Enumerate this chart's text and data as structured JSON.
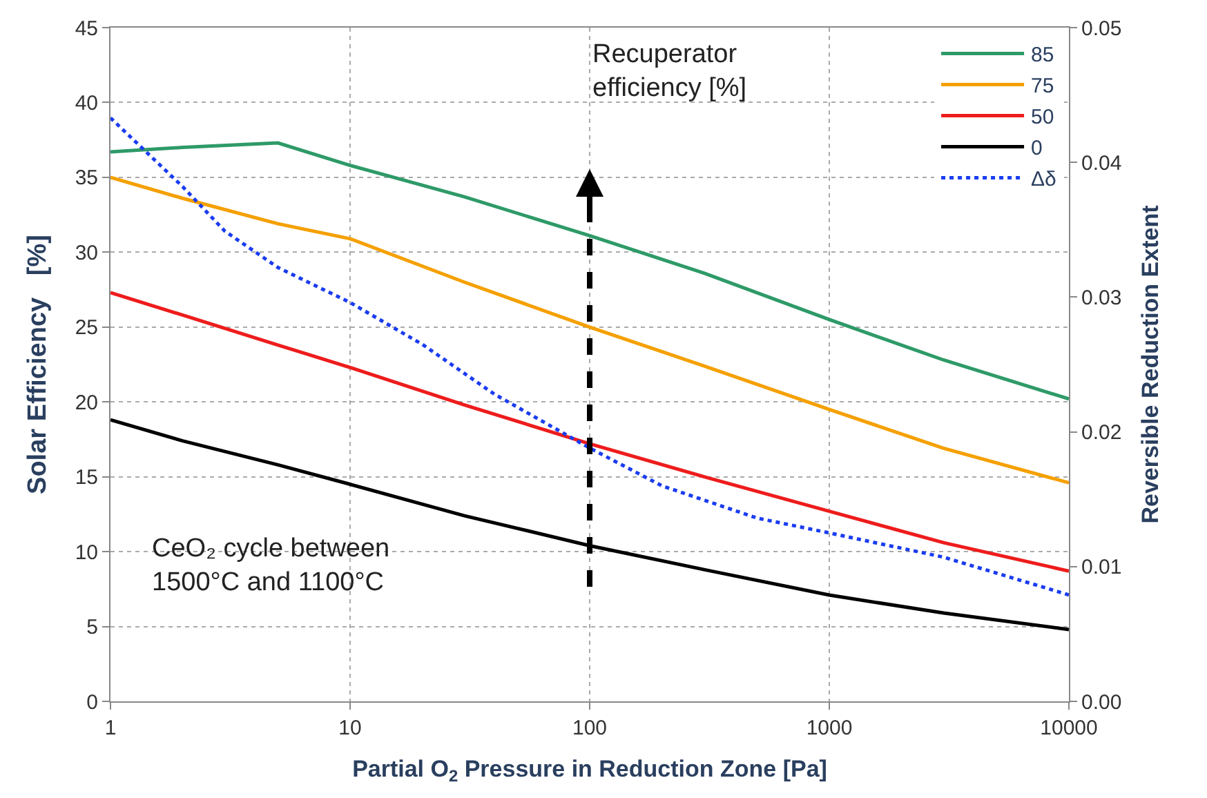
{
  "chart_data": {
    "type": "line",
    "xlabel": "Partial O$_{2}$ Pressure in Reduction Zone [Pa]",
    "ylabel": "Solar Efficiency   [%]",
    "y2label": "Reversible Reduction Extent",
    "log": "x",
    "grid": true,
    "legend": "top right",
    "marker": "none",
    "xlim": [
      1,
      10000
    ],
    "xticks": [
      1,
      10,
      100,
      1000,
      10000
    ],
    "ylim": [
      0,
      45
    ],
    "yticks": [
      0,
      5,
      10,
      15,
      20,
      25,
      30,
      35,
      40,
      45
    ],
    "y2lim": [
      0,
      0.05
    ],
    "y2ticks": [
      {
        "value": 0,
        "label": "0.00"
      },
      {
        "value": 0.01,
        "label": "0.01"
      },
      {
        "value": 0.02,
        "label": "0.02"
      },
      {
        "value": 0.03,
        "label": "0.03"
      },
      {
        "value": 0.04,
        "label": "0.04"
      },
      {
        "value": 0.05,
        "label": "0.05"
      }
    ],
    "x": [
      1,
      2,
      5,
      10,
      30,
      100,
      300,
      1000,
      3000,
      10000
    ],
    "series": [
      {
        "name": "85",
        "color": "#2e9a68",
        "values": [
          36.7,
          37.0,
          37.3,
          35.8,
          33.7,
          31.1,
          28.6,
          25.5,
          22.8,
          20.2
        ]
      },
      {
        "name": "75",
        "color": "#f5a000",
        "values": [
          35.0,
          33.6,
          31.9,
          30.9,
          28.0,
          25.0,
          22.4,
          19.5,
          16.9,
          14.6
        ]
      },
      {
        "name": "50",
        "color": "#ee1c1c",
        "values": [
          27.3,
          25.8,
          23.8,
          22.3,
          19.8,
          17.2,
          15.0,
          12.7,
          10.6,
          8.7
        ]
      },
      {
        "name": "0",
        "color": "#000000",
        "values": [
          18.8,
          17.4,
          15.8,
          14.5,
          12.4,
          10.4,
          8.8,
          7.1,
          5.9,
          4.8
        ]
      },
      {
        "name": "Δδ",
        "color": "#1a3cf0",
        "axis": "y2",
        "line_style": "dotted",
        "x": [
          1,
          2,
          3,
          5,
          10,
          20,
          40,
          100,
          200,
          500,
          1000,
          3000,
          10000
        ],
        "values": [
          0.0433,
          0.0382,
          0.0349,
          0.0322,
          0.0296,
          0.0265,
          0.0228,
          0.0188,
          0.016,
          0.0136,
          0.0125,
          0.0107,
          0.0079
        ]
      }
    ],
    "annotations": [
      "Recuperator efficiency [%]",
      "CeO₂ cycle between 1500°C and 1100°C"
    ]
  }
}
